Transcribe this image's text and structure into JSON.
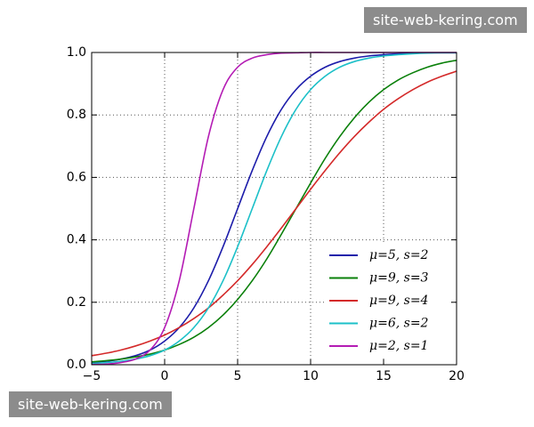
{
  "watermarks": [
    "site-web-kering.com",
    "site-web-kering.com"
  ],
  "chart_data": {
    "type": "line",
    "x": [
      -5,
      -4,
      -3,
      -2,
      -1,
      0,
      1,
      2,
      3,
      4,
      5,
      6,
      7,
      8,
      9,
      10,
      11,
      12,
      13,
      14,
      15,
      16,
      17,
      18,
      19,
      20
    ],
    "series": [
      {
        "name": "μ=5, s=2",
        "color": "#1c1caa",
        "values": [
          0.007,
          0.011,
          0.018,
          0.029,
          0.047,
          0.076,
          0.119,
          0.182,
          0.269,
          0.378,
          0.5,
          0.622,
          0.731,
          0.818,
          0.881,
          0.924,
          0.953,
          0.971,
          0.982,
          0.989,
          0.993,
          0.996,
          0.998,
          0.999,
          0.999,
          0.999
        ]
      },
      {
        "name": "μ=9, s=3",
        "color": "#0a800a",
        "values": [
          0.009,
          0.013,
          0.018,
          0.025,
          0.034,
          0.047,
          0.065,
          0.088,
          0.119,
          0.159,
          0.209,
          0.269,
          0.339,
          0.418,
          0.5,
          0.582,
          0.661,
          0.731,
          0.791,
          0.841,
          0.881,
          0.912,
          0.935,
          0.953,
          0.966,
          0.975
        ]
      },
      {
        "name": "μ=9, s=4",
        "color": "#d42a2a",
        "values": [
          0.029,
          0.037,
          0.047,
          0.06,
          0.076,
          0.095,
          0.119,
          0.148,
          0.182,
          0.223,
          0.269,
          0.321,
          0.378,
          0.438,
          0.5,
          0.562,
          0.622,
          0.679,
          0.731,
          0.777,
          0.818,
          0.852,
          0.881,
          0.905,
          0.924,
          0.94
        ]
      },
      {
        "name": "μ=6, s=2",
        "color": "#1cc0c8",
        "values": [
          0.004,
          0.007,
          0.011,
          0.018,
          0.029,
          0.047,
          0.076,
          0.119,
          0.182,
          0.269,
          0.378,
          0.5,
          0.622,
          0.731,
          0.818,
          0.881,
          0.924,
          0.953,
          0.971,
          0.982,
          0.989,
          0.993,
          0.996,
          0.998,
          0.999,
          0.999
        ]
      },
      {
        "name": "μ=2, s=1",
        "color": "#b41cb4",
        "values": [
          0.001,
          0.002,
          0.007,
          0.018,
          0.047,
          0.119,
          0.269,
          0.5,
          0.731,
          0.881,
          0.953,
          0.982,
          0.993,
          0.998,
          0.999,
          1,
          1,
          1,
          1,
          1,
          1,
          1,
          1,
          1,
          1,
          1
        ]
      }
    ],
    "xlim": [
      -5,
      20
    ],
    "xticks": [
      {
        "value": -5,
        "label": "−5"
      },
      0,
      5,
      10,
      15,
      20
    ],
    "ylim": [
      0,
      1
    ],
    "yticks": [
      {
        "value": 0,
        "label": "0.0"
      },
      {
        "value": 0.2,
        "label": "0.2"
      },
      {
        "value": 0.4,
        "label": "0.4"
      },
      {
        "value": 0.6,
        "label": "0.6"
      },
      {
        "value": 0.8,
        "label": "0.8"
      },
      {
        "value": 1,
        "label": "1.0"
      }
    ],
    "grid": true,
    "legend": "lower right"
  }
}
